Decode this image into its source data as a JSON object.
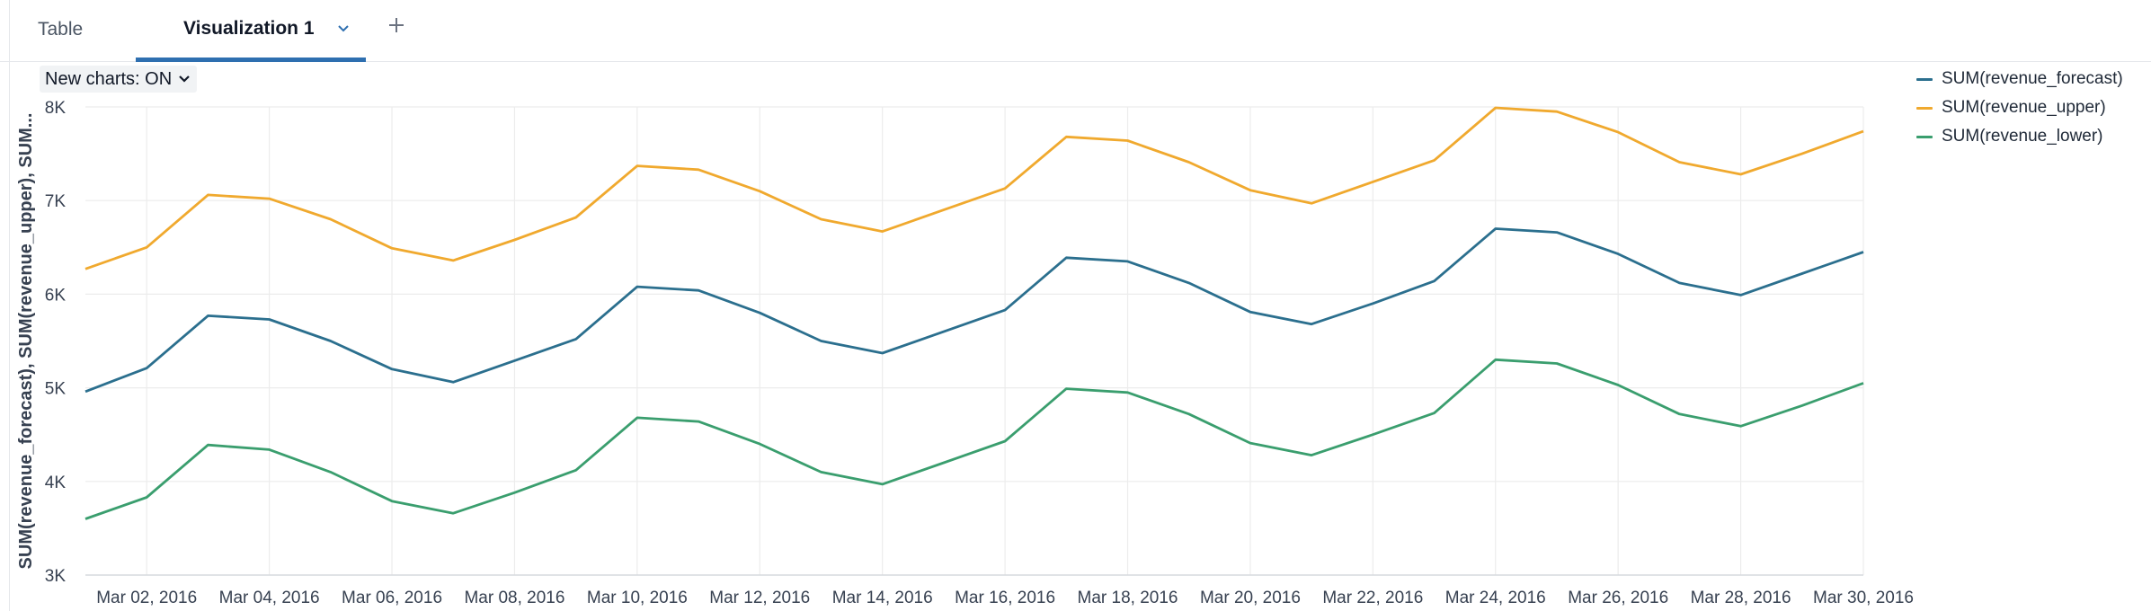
{
  "tabs": [
    {
      "label": "Table"
    },
    {
      "label": "Visualization 1"
    }
  ],
  "add_tab_icon": "plus-icon",
  "toggle": {
    "label": "New charts: ON"
  },
  "chart_data": {
    "type": "line",
    "x": [
      "2016-03-01",
      "2016-03-02",
      "2016-03-03",
      "2016-03-04",
      "2016-03-05",
      "2016-03-06",
      "2016-03-07",
      "2016-03-08",
      "2016-03-09",
      "2016-03-10",
      "2016-03-11",
      "2016-03-12",
      "2016-03-13",
      "2016-03-14",
      "2016-03-15",
      "2016-03-16",
      "2016-03-17",
      "2016-03-18",
      "2016-03-19",
      "2016-03-20",
      "2016-03-21",
      "2016-03-22",
      "2016-03-23",
      "2016-03-24",
      "2016-03-25",
      "2016-03-26",
      "2016-03-27",
      "2016-03-28",
      "2016-03-29",
      "2016-03-30"
    ],
    "xticks": [
      "Mar 02, 2016",
      "Mar 04, 2016",
      "Mar 06, 2016",
      "Mar 08, 2016",
      "Mar 10, 2016",
      "Mar 12, 2016",
      "Mar 14, 2016",
      "Mar 16, 2016",
      "Mar 18, 2016",
      "Mar 20, 2016",
      "Mar 22, 2016",
      "Mar 24, 2016",
      "Mar 26, 2016",
      "Mar 28, 2016",
      "Mar 30, 2016"
    ],
    "yticks": [
      "3K",
      "4K",
      "5K",
      "6K",
      "7K",
      "8K"
    ],
    "ylim": [
      3000,
      8000
    ],
    "ylabel": "SUM(revenue_forecast), SUM(revenue_upper), SUM...",
    "xlabel": "",
    "grid": true,
    "legend_position": "top-right",
    "series": [
      {
        "name": "SUM(revenue_forecast)",
        "color": "#2b6f8e",
        "values": [
          4960,
          5210,
          5770,
          5730,
          5500,
          5200,
          5060,
          5290,
          5520,
          6080,
          6040,
          5800,
          5500,
          5370,
          5600,
          5830,
          6390,
          6350,
          6120,
          5810,
          5680,
          5900,
          6140,
          6700,
          6660,
          6430,
          6120,
          5990,
          6220,
          6450
        ]
      },
      {
        "name": "SUM(revenue_upper)",
        "color": "#f0a92e",
        "values": [
          6270,
          6500,
          7060,
          7020,
          6800,
          6490,
          6360,
          6580,
          6820,
          7370,
          7330,
          7100,
          6800,
          6670,
          6900,
          7130,
          7680,
          7640,
          7410,
          7110,
          6970,
          7200,
          7430,
          7990,
          7950,
          7730,
          7410,
          7280,
          7500,
          7740
        ]
      },
      {
        "name": "SUM(revenue_lower)",
        "color": "#3a9e6e",
        "values": [
          3600,
          3830,
          4390,
          4340,
          4100,
          3790,
          3660,
          3880,
          4120,
          4680,
          4640,
          4400,
          4100,
          3970,
          4200,
          4430,
          4990,
          4950,
          4720,
          4410,
          4280,
          4500,
          4730,
          5300,
          5260,
          5030,
          4720,
          4590,
          4810,
          5050
        ]
      }
    ]
  },
  "colors": {
    "tab_active_underline": "#2e6fb0",
    "grid": "#ececec"
  }
}
